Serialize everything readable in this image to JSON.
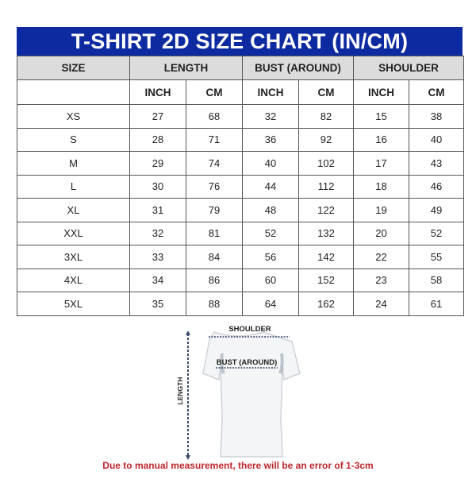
{
  "title": "T-SHIRT 2D SIZE CHART (IN/CM)",
  "header": {
    "size": "SIZE",
    "groups": [
      "LENGTH",
      "BUST (AROUND)",
      "SHOULDER"
    ],
    "units": [
      "INCH",
      "CM",
      "INCH",
      "CM",
      "INCH",
      "CM"
    ]
  },
  "rows": [
    {
      "size": "XS",
      "values": [
        "27",
        "68",
        "32",
        "82",
        "15",
        "38"
      ]
    },
    {
      "size": "S",
      "values": [
        "28",
        "71",
        "36",
        "92",
        "16",
        "40"
      ]
    },
    {
      "size": "M",
      "values": [
        "29",
        "74",
        "40",
        "102",
        "17",
        "43"
      ]
    },
    {
      "size": "L",
      "values": [
        "30",
        "76",
        "44",
        "112",
        "18",
        "46"
      ]
    },
    {
      "size": "XL",
      "values": [
        "31",
        "79",
        "48",
        "122",
        "19",
        "49"
      ]
    },
    {
      "size": "XXL",
      "values": [
        "32",
        "81",
        "52",
        "132",
        "20",
        "52"
      ]
    },
    {
      "size": "3XL",
      "values": [
        "33",
        "84",
        "56",
        "142",
        "22",
        "55"
      ]
    },
    {
      "size": "4XL",
      "values": [
        "34",
        "86",
        "60",
        "152",
        "23",
        "58"
      ]
    },
    {
      "size": "5XL",
      "values": [
        "35",
        "88",
        "64",
        "162",
        "24",
        "61"
      ]
    }
  ],
  "diagram": {
    "shoulder": "SHOULDER",
    "bust": "BUST (AROUND)",
    "length": "LENGTH"
  },
  "note": "Due to manual measurement, there will be an error of 1-3cm",
  "colors": {
    "title_bg": "#0d2aa0",
    "header_bg": "#dcdcdc",
    "note": "#c0262c"
  }
}
